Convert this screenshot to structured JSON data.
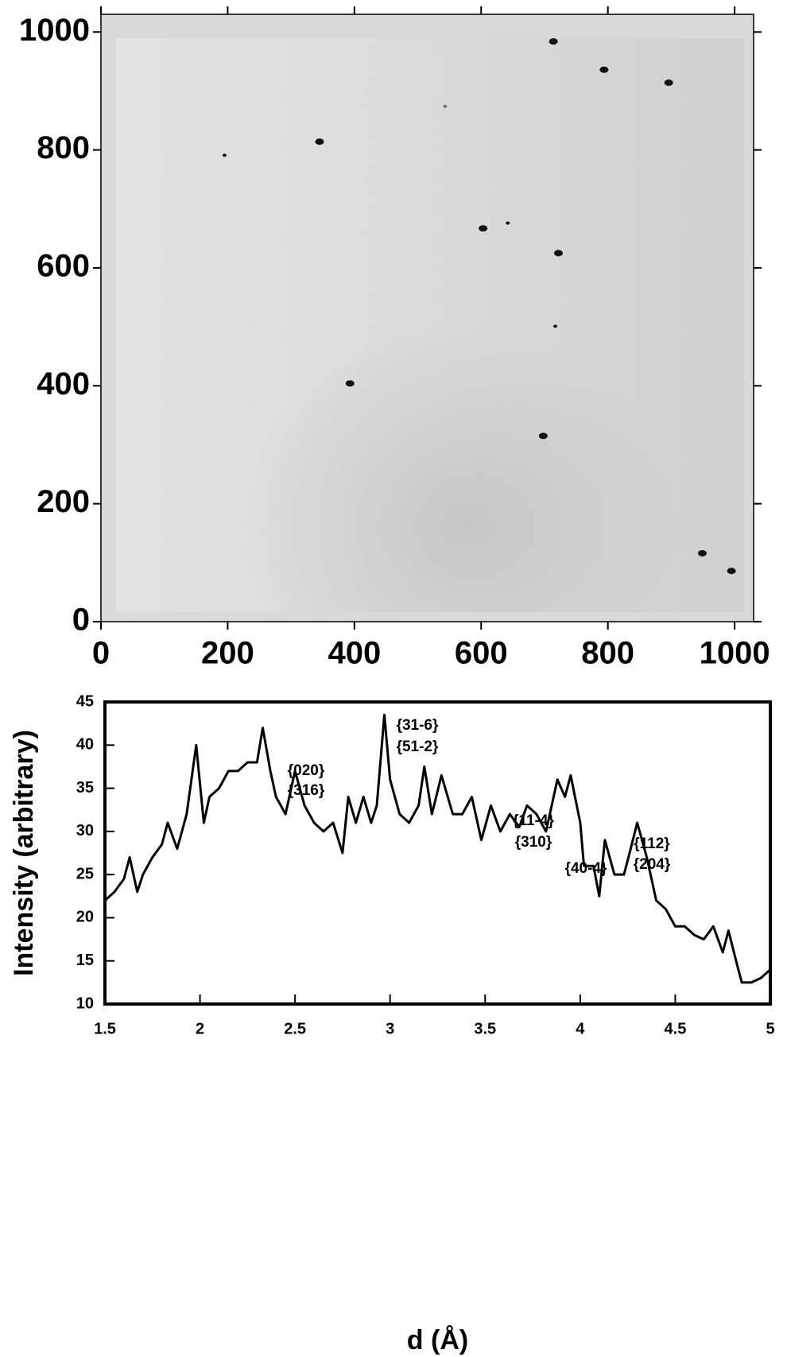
{
  "chart_data": [
    {
      "type": "scatter",
      "x": [
        345,
        195,
        714,
        794,
        896,
        603,
        642,
        722,
        717,
        393,
        698,
        949,
        995,
        543
      ],
      "y": [
        814,
        791,
        984,
        936,
        914,
        667,
        676,
        625,
        501,
        404,
        315,
        116,
        86,
        874
      ],
      "color": "#111111",
      "xlim": [
        0,
        1030
      ],
      "ylim": [
        0,
        1030
      ],
      "xticks": [
        0,
        200,
        400,
        600,
        800,
        1000
      ],
      "yticks": [
        0,
        200,
        400,
        600,
        800,
        1000
      ]
    },
    {
      "type": "line",
      "x": [
        1.5,
        1.55,
        1.6,
        1.63,
        1.67,
        1.7,
        1.75,
        1.8,
        1.83,
        1.88,
        1.93,
        1.98,
        2.02,
        2.05,
        2.1,
        2.15,
        2.2,
        2.25,
        2.3,
        2.33,
        2.37,
        2.4,
        2.45,
        2.5,
        2.55,
        2.6,
        2.65,
        2.7,
        2.75,
        2.78,
        2.82,
        2.86,
        2.9,
        2.93,
        2.97,
        3.0,
        3.05,
        3.1,
        3.15,
        3.18,
        3.22,
        3.27,
        3.33,
        3.38,
        3.43,
        3.48,
        3.53,
        3.58,
        3.63,
        3.68,
        3.72,
        3.77,
        3.82,
        3.88,
        3.92,
        3.95,
        4.0,
        4.02,
        4.07,
        4.1,
        4.13,
        4.18,
        4.23,
        4.26,
        4.3,
        4.35,
        4.4,
        4.45,
        4.5,
        4.55,
        4.6,
        4.65,
        4.7,
        4.75,
        4.78,
        4.82,
        4.85,
        4.9,
        4.95,
        5.0
      ],
      "values": [
        22,
        23,
        24.5,
        27,
        23,
        25,
        27,
        28.5,
        31,
        28,
        32,
        40,
        31,
        34,
        35,
        37,
        37,
        38,
        38,
        42,
        37,
        34,
        32,
        37,
        33,
        31,
        30,
        31,
        27.5,
        34,
        31,
        34,
        31,
        33,
        43.5,
        36,
        32,
        31,
        33,
        37.5,
        32,
        36.5,
        32,
        32,
        34,
        29,
        33,
        30,
        32,
        30.5,
        33,
        32,
        30,
        36,
        34,
        36.5,
        31,
        26,
        26,
        22.5,
        29,
        25,
        25,
        27.5,
        31,
        27,
        22,
        21,
        19,
        19,
        18,
        17.5,
        19,
        16,
        18.5,
        15,
        12.5,
        12.5,
        13,
        14
      ],
      "color": "#000000",
      "xlim": [
        1.5,
        5
      ],
      "ylim": [
        10,
        45
      ],
      "xticks": [
        1.5,
        2,
        2.5,
        3,
        3.5,
        4,
        4.5,
        5
      ],
      "yticks": [
        10,
        15,
        20,
        25,
        30,
        35,
        40,
        45
      ],
      "xlabel": "d  (Å)",
      "ylabel": "Intensity (arbitrary)",
      "annotations": [
        "{020}",
        "{316}",
        "{31-6}",
        "{51-2}",
        "{11-4}",
        "{310}",
        "{40-4}",
        "{112}",
        "{204}"
      ]
    }
  ]
}
